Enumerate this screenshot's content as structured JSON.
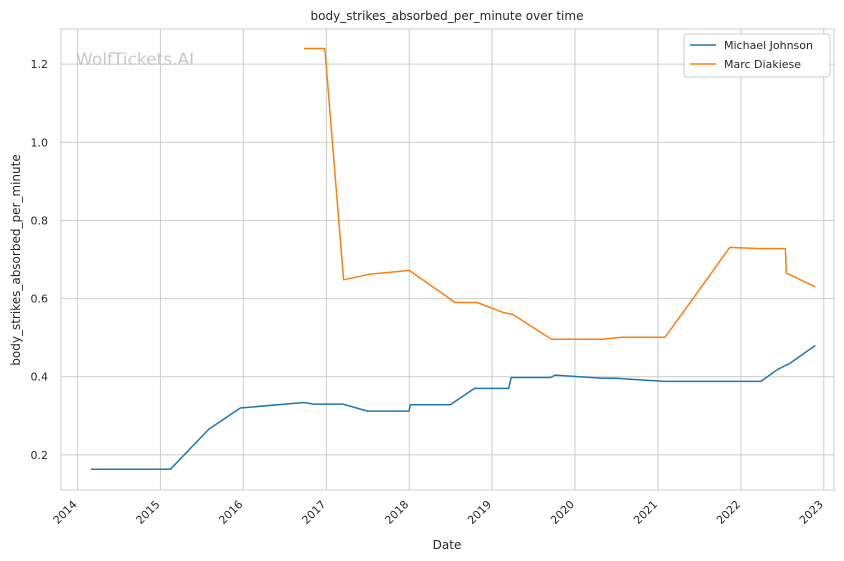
{
  "watermark": "WolfTickets.AI",
  "chart_data": {
    "type": "line",
    "title": "body_strikes_absorbed_per_minute over time",
    "xlabel": "Date",
    "ylabel": "body_strikes_absorbed_per_minute",
    "x_ticks": [
      "2014",
      "2015",
      "2016",
      "2017",
      "2018",
      "2019",
      "2020",
      "2021",
      "2022",
      "2023"
    ],
    "y_ticks": [
      "0.2",
      "0.4",
      "0.6",
      "0.8",
      "1.0",
      "1.2"
    ],
    "xlim": [
      "2013-10-20",
      "2023-02-15"
    ],
    "ylim": [
      0.11,
      1.29
    ],
    "grid": true,
    "legend_position": "top-right",
    "series": [
      {
        "name": "Michael Johnson",
        "color": "#1f77b4",
        "points": [
          [
            "2014-03-01",
            0.163
          ],
          [
            "2015-02-14",
            0.163
          ],
          [
            "2015-08-01",
            0.265
          ],
          [
            "2015-12-19",
            0.32
          ],
          [
            "2016-09-24",
            0.334
          ],
          [
            "2016-11-05",
            0.33
          ],
          [
            "2017-03-15",
            0.33
          ],
          [
            "2017-07-01",
            0.312
          ],
          [
            "2017-12-31",
            0.312
          ],
          [
            "2018-01-06",
            0.328
          ],
          [
            "2018-07-01",
            0.328
          ],
          [
            "2018-10-15",
            0.37
          ],
          [
            "2019-03-15",
            0.37
          ],
          [
            "2019-03-26",
            0.398
          ],
          [
            "2019-09-15",
            0.398
          ],
          [
            "2019-10-05",
            0.404
          ],
          [
            "2020-05-01",
            0.396
          ],
          [
            "2020-07-01",
            0.396
          ],
          [
            "2021-01-30",
            0.388
          ],
          [
            "2022-03-30",
            0.388
          ],
          [
            "2022-06-10",
            0.418
          ],
          [
            "2022-07-20",
            0.43
          ],
          [
            "2022-07-30",
            0.432
          ],
          [
            "2022-11-25",
            0.48
          ]
        ]
      },
      {
        "name": "Marc Diakiese",
        "color": "#ff7f0e",
        "points": [
          [
            "2016-09-24",
            1.24
          ],
          [
            "2016-12-25",
            1.24
          ],
          [
            "2017-03-18",
            0.648
          ],
          [
            "2017-07-08",
            0.662
          ],
          [
            "2018-01-01",
            0.672
          ],
          [
            "2018-07-22",
            0.59
          ],
          [
            "2018-10-27",
            0.59
          ],
          [
            "2019-02-20",
            0.564
          ],
          [
            "2019-04-01",
            0.56
          ],
          [
            "2019-09-20",
            0.496
          ],
          [
            "2020-05-01",
            0.496
          ],
          [
            "2020-07-25",
            0.501
          ],
          [
            "2021-02-01",
            0.501
          ],
          [
            "2021-11-13",
            0.731
          ],
          [
            "2022-03-30",
            0.728
          ],
          [
            "2022-07-16",
            0.728
          ],
          [
            "2022-07-20",
            0.665
          ],
          [
            "2022-11-25",
            0.63
          ]
        ]
      }
    ]
  }
}
